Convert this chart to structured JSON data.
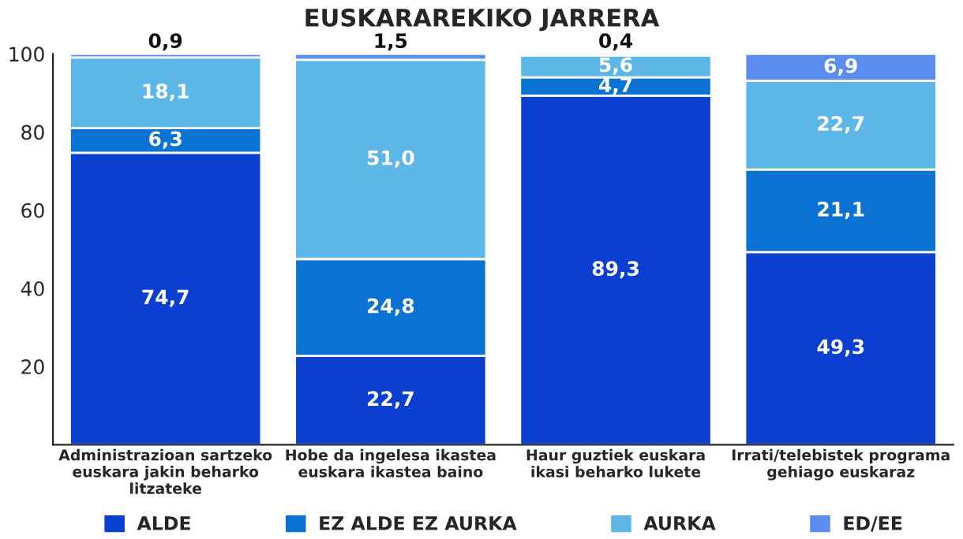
{
  "chart_data": {
    "type": "bar",
    "title": "EUSKARAREKIKO JARRERA",
    "stacked": true,
    "categories": [
      "Administrazioan sartzeko\neuskara jakin beharko\nlitzateke",
      "Hobe da ingelesa ikastea\neuskara ikastea baino",
      "Haur guztiek euskara\nikasi beharko lukete",
      "Irrati/telebistek programa\ngehiago euskaraz"
    ],
    "series": [
      {
        "name": "ALDE",
        "color": "#0b3fd1",
        "values": [
          74.7,
          22.7,
          89.3,
          49.3
        ],
        "value_labels": [
          "74,7",
          "22,7",
          "89,3",
          "49,3"
        ]
      },
      {
        "name": "EZ ALDE EZ AURKA",
        "color": "#0a72d2",
        "values": [
          6.3,
          24.8,
          4.7,
          21.1
        ],
        "value_labels": [
          "6,3",
          "24,8",
          "4,7",
          "21,1"
        ]
      },
      {
        "name": "AURKA",
        "color": "#5cb7e8",
        "values": [
          18.1,
          51.0,
          5.6,
          22.7
        ],
        "value_labels": [
          "18,1",
          "51,0",
          "5,6",
          "22,7"
        ]
      },
      {
        "name": "ED/EE",
        "color": "#5b8cf0",
        "values": [
          0.9,
          1.5,
          0.4,
          6.9
        ],
        "value_labels": [
          "0,9",
          "1,5",
          "0,4",
          "6,9"
        ]
      }
    ],
    "ylim": [
      0,
      100
    ],
    "yticks": [
      20,
      40,
      60,
      80,
      100
    ],
    "legend": "bottom"
  }
}
